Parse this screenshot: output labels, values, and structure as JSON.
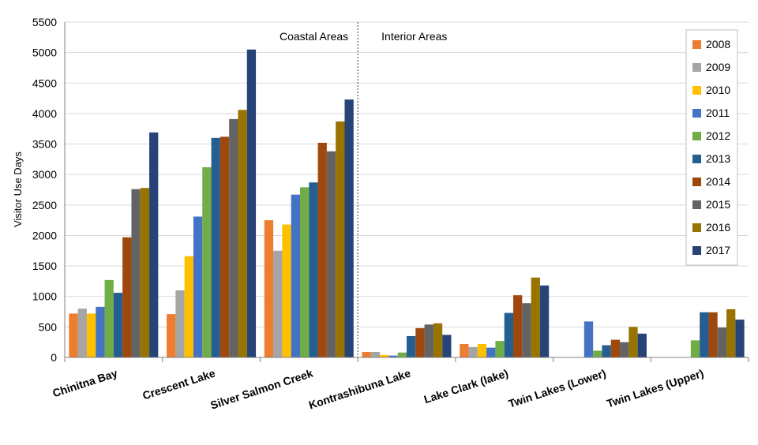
{
  "chart_data": {
    "type": "bar",
    "title": "",
    "xlabel": "",
    "ylabel": "Visitor Use Days",
    "ylim": [
      0,
      5500
    ],
    "yticks": [
      0,
      500,
      1000,
      1500,
      2000,
      2500,
      3000,
      3500,
      4000,
      4500,
      5000,
      5500
    ],
    "grid": true,
    "legend_position": "top-right",
    "categories": [
      "Chinitna Bay",
      "Crescent Lake",
      "Silver Salmon Creek",
      "Kontrashibuna Lake",
      "Lake Clark (lake)",
      "Twin Lakes (Lower)",
      "Twin Lakes (Upper)"
    ],
    "regions": [
      {
        "label": "Coastal Areas",
        "categories": [
          "Chinitna Bay",
          "Crescent Lake",
          "Silver Salmon Creek"
        ]
      },
      {
        "label": "Interior Areas",
        "categories": [
          "Kontrashibuna Lake",
          "Lake Clark (lake)",
          "Twin Lakes (Lower)",
          "Twin Lakes (Upper)"
        ]
      }
    ],
    "series": [
      {
        "name": "2008",
        "color": "#ED7D31",
        "values": [
          720,
          710,
          2250,
          90,
          220,
          0,
          0
        ]
      },
      {
        "name": "2009",
        "color": "#A5A5A5",
        "values": [
          800,
          1100,
          1750,
          90,
          170,
          0,
          0
        ]
      },
      {
        "name": "2010",
        "color": "#FFC000",
        "values": [
          720,
          1660,
          2180,
          40,
          220,
          0,
          0
        ]
      },
      {
        "name": "2011",
        "color": "#4472C4",
        "values": [
          830,
          2310,
          2670,
          30,
          160,
          590,
          0
        ]
      },
      {
        "name": "2012",
        "color": "#70AD47",
        "values": [
          1270,
          3120,
          2790,
          80,
          270,
          110,
          280
        ]
      },
      {
        "name": "2013",
        "color": "#255E91",
        "values": [
          1060,
          3600,
          2870,
          350,
          730,
          200,
          740
        ]
      },
      {
        "name": "2014",
        "color": "#9E480E",
        "values": [
          1970,
          3620,
          3520,
          480,
          1020,
          290,
          740
        ]
      },
      {
        "name": "2015",
        "color": "#636363",
        "values": [
          2760,
          3910,
          3380,
          540,
          890,
          250,
          490
        ]
      },
      {
        "name": "2016",
        "color": "#997300",
        "values": [
          2780,
          4060,
          3870,
          560,
          1310,
          500,
          790
        ]
      },
      {
        "name": "2017",
        "color": "#264478",
        "values": [
          3690,
          5050,
          4230,
          370,
          1180,
          390,
          620
        ]
      }
    ]
  }
}
